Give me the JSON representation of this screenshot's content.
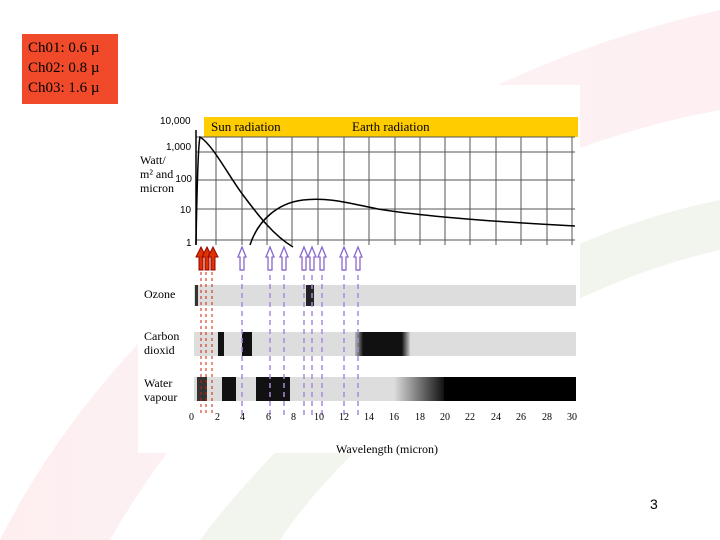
{
  "channels": [
    {
      "label": "Ch01: 0.6 µ"
    },
    {
      "label": "Ch02: 0.8 µ"
    },
    {
      "label": "Ch03: 1.6 µ"
    }
  ],
  "header_bar": {
    "sun_label": "Sun radiation",
    "earth_label": "Earth  radiation",
    "color": "#ffcc00"
  },
  "y_axis": {
    "label_line1": "Watt/",
    "label_line2": "m² and",
    "label_line3": "micron",
    "ticks": [
      "10,000",
      "1,000",
      "100",
      "10",
      "1"
    ]
  },
  "x_axis": {
    "label": "Wavelength (micron)",
    "ticks": [
      "0",
      "2",
      "4",
      "6",
      "8",
      "10",
      "12",
      "14",
      "16",
      "18",
      "20",
      "22",
      "24",
      "26",
      "28",
      "30"
    ]
  },
  "absorbers": {
    "ozone": "Ozone",
    "co2_line1": "Carbon",
    "co2_line2": "dioxid",
    "water_line1": "Water",
    "water_line2": "vapour"
  },
  "page_number": "3",
  "colors": {
    "legend_bg": "#f04a2a",
    "solar_arrow": "#cc2200",
    "thermal_arrow": "#8866cc",
    "band_bg": "#dddddd"
  }
}
